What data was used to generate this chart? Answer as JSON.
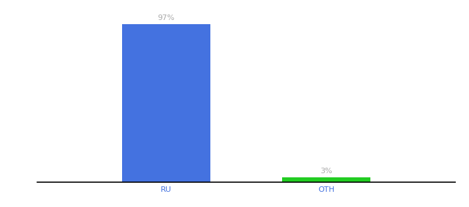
{
  "categories": [
    "RU",
    "OTH"
  ],
  "values": [
    97,
    3
  ],
  "bar_colors": [
    "#4472e0",
    "#22cc22"
  ],
  "label_texts": [
    "97%",
    "3%"
  ],
  "label_color": "#aaaaaa",
  "label_fontsize": 8,
  "xlabel_fontsize": 8,
  "xlabel_color": "#4472e0",
  "background_color": "#ffffff",
  "ylim": [
    0,
    108
  ],
  "bar_width": 0.55,
  "xlim": [
    -0.8,
    1.8
  ],
  "figsize": [
    6.8,
    3.0
  ],
  "dpi": 100
}
